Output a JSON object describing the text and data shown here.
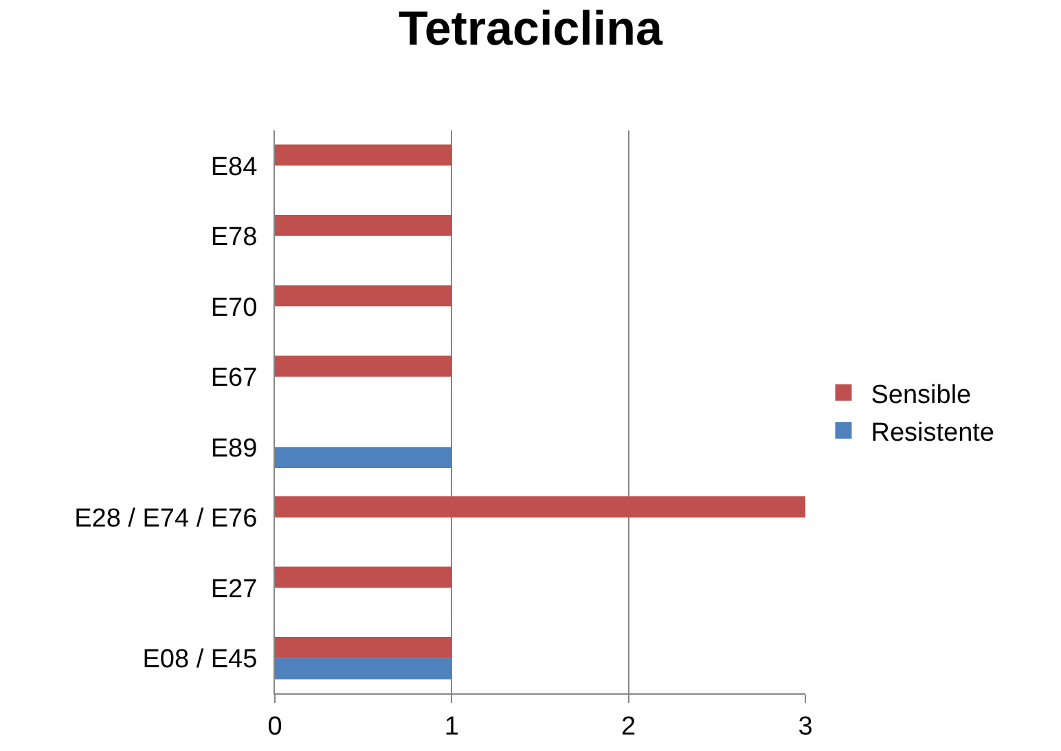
{
  "chart_data": {
    "type": "bar",
    "title": "Tetraciclina",
    "orientation": "horizontal",
    "categories": [
      "E84",
      "E78",
      "E70",
      "E67",
      "E89",
      "E28 / E74 / E76",
      "E27",
      "E08 / E45"
    ],
    "series": [
      {
        "name": "Sensible",
        "color": "#c0504d",
        "values": [
          1,
          1,
          1,
          1,
          null,
          3,
          1,
          1
        ]
      },
      {
        "name": "Resistente",
        "color": "#4f81bd",
        "values": [
          null,
          null,
          null,
          null,
          1,
          null,
          null,
          1
        ]
      }
    ],
    "xlim": [
      0,
      3
    ],
    "xticks": [
      0,
      1,
      2,
      3
    ],
    "grid": "x",
    "legend": "right"
  }
}
